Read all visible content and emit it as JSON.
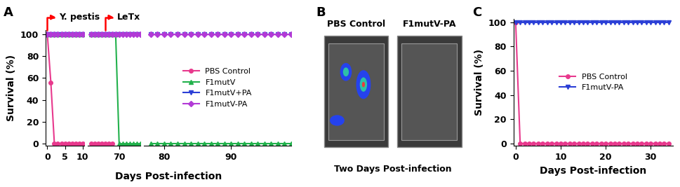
{
  "chart_data": [
    {
      "type": "line",
      "title": "A",
      "x_label": "Days Post-infection",
      "y_label": "Survival (%)",
      "ylim": [
        -2,
        104
      ],
      "yticks": [
        0,
        20,
        40,
        60,
        80,
        100
      ],
      "segments": [
        {
          "xlim": [
            -0.5,
            10.5
          ],
          "xticks": [
            0,
            5,
            10
          ]
        },
        {
          "xlim": [
            61,
            76
          ],
          "xticks": [
            70
          ]
        },
        {
          "xlim": [
            77,
            99
          ],
          "xticks": [
            80,
            90
          ]
        }
      ],
      "x": [
        0,
        1,
        2,
        3,
        4,
        5,
        6,
        7,
        8,
        9,
        10,
        62,
        63,
        64,
        65,
        66,
        67,
        68,
        69,
        70,
        71,
        72,
        73,
        74,
        75,
        76,
        78,
        79,
        80,
        81,
        82,
        83,
        84,
        85,
        86,
        87,
        88,
        89,
        90,
        91,
        92,
        93,
        94,
        95,
        96,
        97,
        98,
        99
      ],
      "series": [
        {
          "name": "PBS Control",
          "color": "#e8398d",
          "marker": "circle",
          "values": [
            100,
            56,
            0,
            0,
            0,
            0,
            0,
            0,
            0,
            0,
            0,
            0,
            0,
            0,
            0,
            0,
            0,
            0,
            null,
            null,
            null,
            null,
            null,
            null,
            null,
            null,
            null,
            null,
            null,
            null,
            null,
            null,
            null,
            null,
            null,
            null,
            null,
            null,
            null,
            null,
            null,
            null,
            null,
            null,
            null,
            null,
            null,
            null
          ]
        },
        {
          "name": "F1mutV",
          "color": "#22b14c",
          "marker": "triangle",
          "values": [
            100,
            100,
            100,
            100,
            100,
            100,
            100,
            100,
            100,
            100,
            100,
            100,
            100,
            100,
            100,
            100,
            100,
            100,
            100,
            0,
            0,
            0,
            0,
            0,
            0,
            0,
            0,
            0,
            0,
            0,
            0,
            0,
            0,
            0,
            0,
            0,
            0,
            0,
            0,
            0,
            0,
            0,
            0,
            0,
            0,
            0,
            0,
            0
          ]
        },
        {
          "name": "F1mutV+PA",
          "color": "#2b3fd6",
          "marker": "triangle_down",
          "values": [
            100,
            100,
            100,
            100,
            100,
            100,
            100,
            100,
            100,
            100,
            100,
            100,
            100,
            100,
            100,
            100,
            100,
            100,
            100,
            100,
            100,
            100,
            100,
            100,
            100,
            100,
            100,
            100,
            100,
            100,
            100,
            100,
            100,
            100,
            100,
            100,
            100,
            100,
            100,
            100,
            100,
            100,
            100,
            100,
            100,
            100,
            100,
            100
          ]
        },
        {
          "name": "F1mutV-PA",
          "color": "#b23ad6",
          "marker": "diamond",
          "values": [
            100,
            100,
            100,
            100,
            100,
            100,
            100,
            100,
            100,
            100,
            100,
            100,
            100,
            100,
            100,
            100,
            100,
            100,
            100,
            100,
            100,
            100,
            100,
            100,
            100,
            100,
            100,
            100,
            100,
            100,
            100,
            100,
            100,
            100,
            100,
            100,
            100,
            100,
            100,
            100,
            100,
            100,
            100,
            100,
            100,
            100,
            100,
            100
          ]
        }
      ],
      "annotations": [
        {
          "text": "Y. pestis",
          "x": 0
        },
        {
          "text": "LeTx",
          "x": 66
        }
      ],
      "legend": "center"
    },
    {
      "type": "line",
      "title": "C",
      "x_label": "Days Post-infection",
      "y_label": "Survival (%)",
      "xlim": [
        -0.5,
        35
      ],
      "xticks": [
        0,
        10,
        20,
        30
      ],
      "ylim": [
        -2,
        103
      ],
      "yticks": [
        0,
        20,
        40,
        60,
        80,
        100
      ],
      "x": [
        0,
        1,
        2,
        3,
        4,
        5,
        6,
        7,
        8,
        9,
        10,
        11,
        12,
        13,
        14,
        15,
        16,
        17,
        18,
        19,
        20,
        21,
        22,
        23,
        24,
        25,
        26,
        27,
        28,
        29,
        30,
        31,
        32,
        33,
        34
      ],
      "series": [
        {
          "name": "PBS Control",
          "color": "#e8398d",
          "marker": "circle",
          "values": [
            100,
            0,
            0,
            0,
            0,
            0,
            0,
            0,
            0,
            0,
            0,
            0,
            0,
            0,
            0,
            0,
            0,
            0,
            0,
            0,
            0,
            0,
            0,
            0,
            0,
            0,
            0,
            0,
            0,
            0,
            0,
            0,
            0,
            0,
            0
          ]
        },
        {
          "name": "F1mutV-PA",
          "color": "#2b3fd6",
          "marker": "triangle_down",
          "values": [
            100,
            100,
            100,
            100,
            100,
            100,
            100,
            100,
            100,
            100,
            100,
            100,
            100,
            100,
            100,
            100,
            100,
            100,
            100,
            100,
            100,
            100,
            100,
            100,
            100,
            100,
            100,
            100,
            100,
            100,
            100,
            100,
            100,
            100,
            100
          ]
        }
      ],
      "legend": "center"
    }
  ],
  "image_panel": {
    "title": "B",
    "labels": [
      "PBS Control",
      "F1mutV-PA"
    ],
    "caption": "Two Days Post-infection"
  }
}
